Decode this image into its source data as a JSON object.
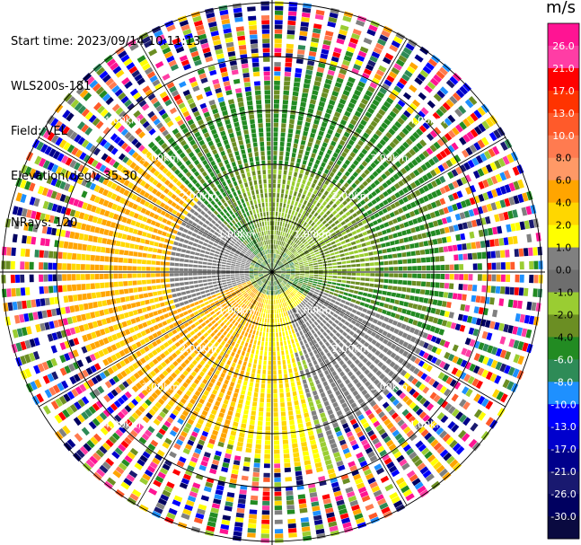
{
  "header": {
    "start_time": "Start time: 2023/09/14 10:11:13",
    "instrument": "WLS200s-181",
    "field": "Field: VEL",
    "elevation": "Elevation(deg): 35.30",
    "nrays": "NRays: 120"
  },
  "chart_data": {
    "type": "heatmap",
    "subtype": "polar PPI (plan position indicator)",
    "field": "VEL",
    "units": "m/s",
    "range_rings_km": [
      1.0,
      2.0,
      3.0,
      4.0
    ],
    "range_ring_labels": [
      "1.00km",
      "2.00km",
      "3.00km",
      "4.00km"
    ],
    "n_rays": 120,
    "max_range_km": 5.2,
    "spoke_angles_deg": [
      0,
      30,
      60,
      90,
      120,
      150,
      180,
      210,
      240,
      270,
      300,
      330
    ],
    "colorbar": {
      "title": "m/s",
      "vmin": -30.0,
      "vmax": 30.0,
      "tick_labels": [
        "26.0",
        "21.0",
        "17.0",
        "13.0",
        "10.0",
        "8.0",
        "6.0",
        "4.0",
        "2.0",
        "1.0",
        "0.0",
        "-1.0",
        "-2.0",
        "-4.0",
        "-6.0",
        "-8.0",
        "-10.0",
        "-13.0",
        "-17.0",
        "-21.0",
        "-26.0",
        "-30.0"
      ],
      "colors": [
        "#ff3da5",
        "#ff0000",
        "#ff3300",
        "#ff5a2a",
        "#ff7b50",
        "#ff9966",
        "#ff8a00",
        "#ffb300",
        "#ffff00",
        "#ffe08a",
        "#777777",
        "#8a8a8a",
        "#9ac42a",
        "#6b8e23",
        "#228b22",
        "#2e8b57",
        "#1e90ff",
        "#0000ff",
        "#0000cd",
        "#00008b",
        "#191970",
        "#000060"
      ],
      "fill_colors": [
        "#ff1493",
        "#ff3da5",
        "#ff0000",
        "#ff3300",
        "#ff5a2a",
        "#ff7b50",
        "#ff9966",
        "#ffa500",
        "#ffd700",
        "#ffff00",
        "#808080",
        "#6e6e6e",
        "#9acd32",
        "#6b8e23",
        "#228b22",
        "#2e8b57",
        "#1e90ff",
        "#0000ff",
        "#0000cd",
        "#00008b",
        "#191970",
        "#000060",
        "#0a0a40"
      ]
    }
  }
}
